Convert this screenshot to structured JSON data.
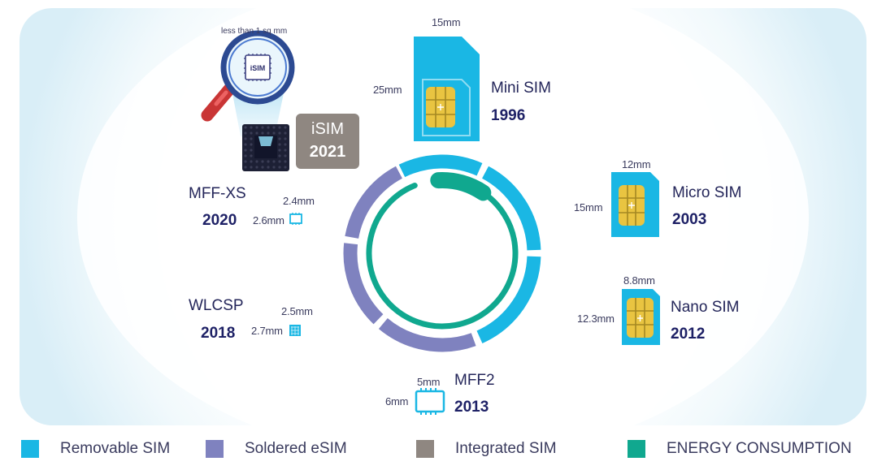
{
  "isim": {
    "label": "iSIM",
    "year": "2021",
    "note": "less than 1 sq mm",
    "chip_text": "iSIM"
  },
  "cards": [
    {
      "id": "mini",
      "name": "Mini SIM",
      "year": "1996",
      "width": "15mm",
      "height": "25mm"
    },
    {
      "id": "micro",
      "name": "Micro SIM",
      "year": "2003",
      "width": "12mm",
      "height": "15mm"
    },
    {
      "id": "nano",
      "name": "Nano SIM",
      "year": "2012",
      "width": "8.8mm",
      "height": "12.3mm"
    },
    {
      "id": "mff2",
      "name": "MFF2",
      "year": "2013",
      "width": "5mm",
      "height": "6mm"
    },
    {
      "id": "wlcsp",
      "name": "WLCSP",
      "year": "2018",
      "width": "2.5mm",
      "height": "2.7mm"
    },
    {
      "id": "mffxs",
      "name": "MFF-XS",
      "year": "2020",
      "width": "2.4mm",
      "height": "2.6mm"
    }
  ],
  "legend": [
    {
      "label": "Removable SIM",
      "color": "#1ab7e4"
    },
    {
      "label": "Soldered eSIM",
      "color": "#7f82bf"
    },
    {
      "label": "Integrated SIM",
      "color": "#8f8781"
    },
    {
      "label": "ENERGY CONSUMPTION",
      "color": "#10a88f"
    }
  ],
  "colors": {
    "removable": "#1ab7e4",
    "soldered": "#7f82bf",
    "integrated": "#8f8781",
    "energy": "#10a88f",
    "background_panel": "#eaf6fb",
    "chip_gold": "#e9c441"
  },
  "icons": [
    "magnifier-icon",
    "chip-icon",
    "sim-chip-icon"
  ]
}
